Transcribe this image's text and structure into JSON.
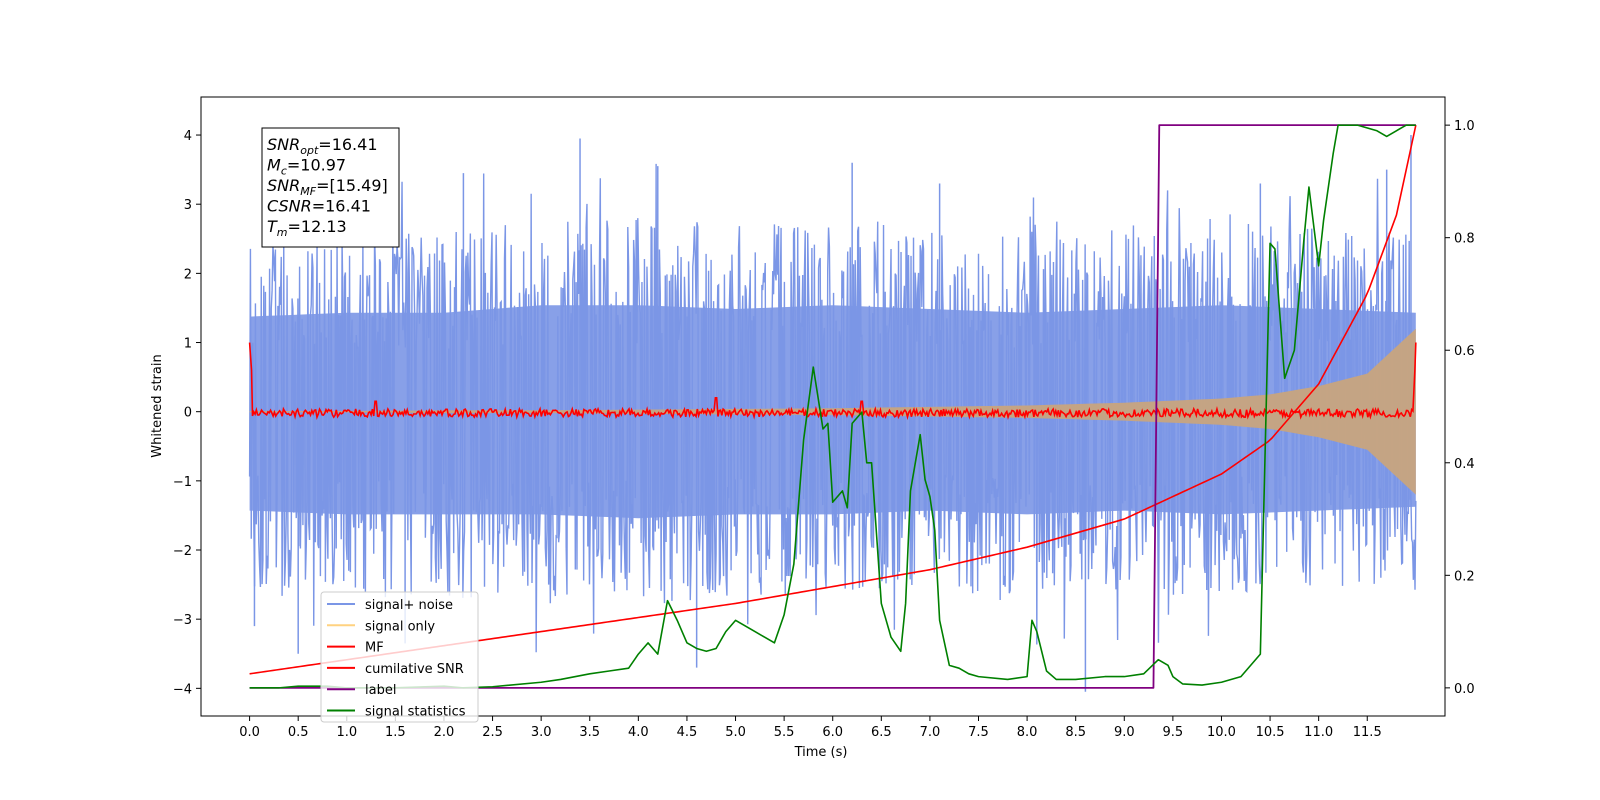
{
  "chart_data": {
    "type": "line",
    "title": "",
    "xlabel": "Time (s)",
    "ylabel": "Whitened strain",
    "y2label": "",
    "xlim": [
      -0.5,
      12.3
    ],
    "ylim": [
      -4.4,
      4.55
    ],
    "y2lim": [
      -0.05,
      1.05
    ],
    "x_ticks": [
      0.0,
      0.5,
      1.0,
      1.5,
      2.0,
      2.5,
      3.0,
      3.5,
      4.0,
      4.5,
      5.0,
      5.5,
      6.0,
      6.5,
      7.0,
      7.5,
      8.0,
      8.5,
      9.0,
      9.5,
      10.0,
      10.5,
      11.0,
      11.5
    ],
    "x_tick_labels": [
      "0.0",
      "0.5",
      "1.0",
      "1.5",
      "2.0",
      "2.5",
      "3.0",
      "3.5",
      "4.0",
      "4.5",
      "5.0",
      "5.5",
      "6.0",
      "6.5",
      "7.0",
      "7.5",
      "8.0",
      "8.5",
      "9.0",
      "9.5",
      "10.0",
      "10.5",
      "11.0",
      "11.5"
    ],
    "y_ticks": [
      -4,
      -3,
      -2,
      -1,
      0,
      1,
      2,
      3,
      4
    ],
    "y_tick_labels": [
      "−4",
      "−3",
      "−2",
      "−1",
      "0",
      "1",
      "2",
      "3",
      "4"
    ],
    "y2_ticks": [
      0.0,
      0.2,
      0.4,
      0.6,
      0.8,
      1.0
    ],
    "y2_tick_labels": [
      "0.0",
      "0.2",
      "0.4",
      "0.6",
      "0.8",
      "1.0"
    ],
    "grid": false,
    "legend_position": "lower-left",
    "annotation_box": {
      "position": "top-left",
      "lines": [
        {
          "sym": "SNR",
          "sub": "opt",
          "val": "=16.41"
        },
        {
          "sym": "M",
          "sub": "c",
          "val": "=10.97"
        },
        {
          "sym": "SNR",
          "sub": "MF",
          "val": "=[15.49]"
        },
        {
          "sym": "CSNR",
          "sub": "",
          "val": "=16.41"
        },
        {
          "sym": "T",
          "sub": "m",
          "val": "=12.13"
        }
      ]
    },
    "series": [
      {
        "name": "signal+ noise",
        "axis": "left",
        "color": "#7b96e6",
        "kind": "noise_band",
        "x_range": [
          0.0,
          12.0
        ],
        "envelope": {
          "x": [
            0,
            1,
            2,
            3,
            4,
            5,
            6,
            7,
            8,
            9,
            10,
            11,
            12
          ],
          "lo": [
            -2.6,
            -2.7,
            -2.7,
            -2.7,
            -2.8,
            -2.7,
            -2.7,
            -2.6,
            -2.7,
            -2.6,
            -2.7,
            -2.6,
            -2.5
          ],
          "hi": [
            2.5,
            2.6,
            2.6,
            2.8,
            2.8,
            2.7,
            2.8,
            2.7,
            2.6,
            2.7,
            2.8,
            2.7,
            2.6
          ]
        },
        "spikes": [
          {
            "x": 0.05,
            "y": -3.1
          },
          {
            "x": 0.5,
            "y": -3.5
          },
          {
            "x": 1.6,
            "y": -3.35
          },
          {
            "x": 2.2,
            "y": 3.45
          },
          {
            "x": 3.4,
            "y": 3.95
          },
          {
            "x": 4.2,
            "y": 3.55
          },
          {
            "x": 4.6,
            "y": -3.7
          },
          {
            "x": 6.2,
            "y": 3.6
          },
          {
            "x": 7.1,
            "y": 3.3
          },
          {
            "x": 8.6,
            "y": -4.05
          },
          {
            "x": 10.4,
            "y": 3.3
          },
          {
            "x": 11.7,
            "y": 3.5
          },
          {
            "x": 11.95,
            "y": 4.0
          }
        ]
      },
      {
        "name": "signal only",
        "axis": "left",
        "color": "#ffd280",
        "fill": "#c8a47e",
        "kind": "chirp_envelope",
        "x": [
          0,
          1,
          2,
          3,
          4,
          5,
          6,
          7,
          8,
          9,
          10,
          10.5,
          11,
          11.5,
          12
        ],
        "amplitude": [
          0.01,
          0.01,
          0.02,
          0.02,
          0.03,
          0.04,
          0.05,
          0.07,
          0.09,
          0.13,
          0.19,
          0.25,
          0.37,
          0.55,
          1.2
        ]
      },
      {
        "name": "MF",
        "axis": "left",
        "color": "#ff0000",
        "kind": "mf",
        "x": [
          0.0,
          0.02,
          0.03,
          11.97,
          11.99,
          12.0
        ],
        "y": [
          1.0,
          0.6,
          -0.02,
          -0.02,
          0.6,
          1.0
        ],
        "wiggle": 0.06,
        "peaks": [
          {
            "x": 4.8,
            "y": 0.2
          },
          {
            "x": 6.3,
            "y": 0.15
          },
          {
            "x": 1.3,
            "y": 0.15
          }
        ]
      },
      {
        "name": "cumilative SNR",
        "axis": "right",
        "color": "#ff0000",
        "x": [
          0.0,
          1,
          2,
          3,
          4,
          5,
          6,
          7,
          8,
          9,
          9.5,
          10,
          10.5,
          11,
          11.5,
          11.8,
          12.0
        ],
        "y": [
          0.025,
          0.05,
          0.075,
          0.1,
          0.125,
          0.15,
          0.18,
          0.21,
          0.25,
          0.3,
          0.34,
          0.38,
          0.44,
          0.54,
          0.7,
          0.84,
          1.0
        ]
      },
      {
        "name": "label",
        "axis": "right",
        "color": "#800080",
        "x": [
          0.0,
          9.3,
          9.36,
          12.0
        ],
        "y": [
          0.0,
          0.0,
          1.0,
          1.0
        ]
      },
      {
        "name": "signal statistics",
        "axis": "right",
        "color": "#008000",
        "x": [
          0.0,
          0.3,
          0.5,
          0.8,
          1.0,
          1.5,
          2.0,
          2.2,
          2.5,
          3.0,
          3.2,
          3.5,
          3.7,
          3.9,
          4.0,
          4.1,
          4.2,
          4.3,
          4.4,
          4.5,
          4.6,
          4.7,
          4.8,
          4.9,
          5.0,
          5.1,
          5.2,
          5.3,
          5.4,
          5.5,
          5.6,
          5.7,
          5.8,
          5.9,
          5.95,
          6.0,
          6.1,
          6.15,
          6.2,
          6.3,
          6.35,
          6.4,
          6.5,
          6.6,
          6.7,
          6.75,
          6.8,
          6.9,
          6.95,
          7.0,
          7.05,
          7.1,
          7.2,
          7.3,
          7.4,
          7.5,
          7.8,
          8.0,
          8.05,
          8.1,
          8.2,
          8.3,
          8.5,
          8.8,
          9.0,
          9.2,
          9.35,
          9.45,
          9.5,
          9.6,
          9.8,
          10.0,
          10.2,
          10.3,
          10.4,
          10.5,
          10.55,
          10.65,
          10.75,
          10.85,
          10.9,
          11.0,
          11.05,
          11.15,
          11.2,
          11.3,
          11.4,
          11.6,
          11.7,
          11.8,
          11.9,
          12.0
        ],
        "y": [
          0.0,
          0.0,
          0.003,
          0.003,
          0.0,
          0.0,
          0.003,
          0.0,
          0.002,
          0.01,
          0.015,
          0.025,
          0.03,
          0.035,
          0.06,
          0.08,
          0.06,
          0.155,
          0.12,
          0.08,
          0.07,
          0.065,
          0.07,
          0.1,
          0.12,
          0.11,
          0.1,
          0.09,
          0.08,
          0.13,
          0.22,
          0.44,
          0.57,
          0.46,
          0.47,
          0.33,
          0.35,
          0.32,
          0.47,
          0.49,
          0.4,
          0.4,
          0.15,
          0.09,
          0.065,
          0.15,
          0.35,
          0.45,
          0.37,
          0.34,
          0.28,
          0.12,
          0.04,
          0.035,
          0.025,
          0.02,
          0.015,
          0.02,
          0.12,
          0.1,
          0.03,
          0.015,
          0.015,
          0.02,
          0.02,
          0.025,
          0.05,
          0.04,
          0.02,
          0.007,
          0.005,
          0.01,
          0.02,
          0.04,
          0.06,
          0.79,
          0.78,
          0.55,
          0.6,
          0.8,
          0.89,
          0.75,
          0.83,
          0.95,
          1.0,
          1.0,
          1.0,
          0.99,
          0.98,
          0.99,
          1.0,
          1.0
        ]
      }
    ]
  }
}
